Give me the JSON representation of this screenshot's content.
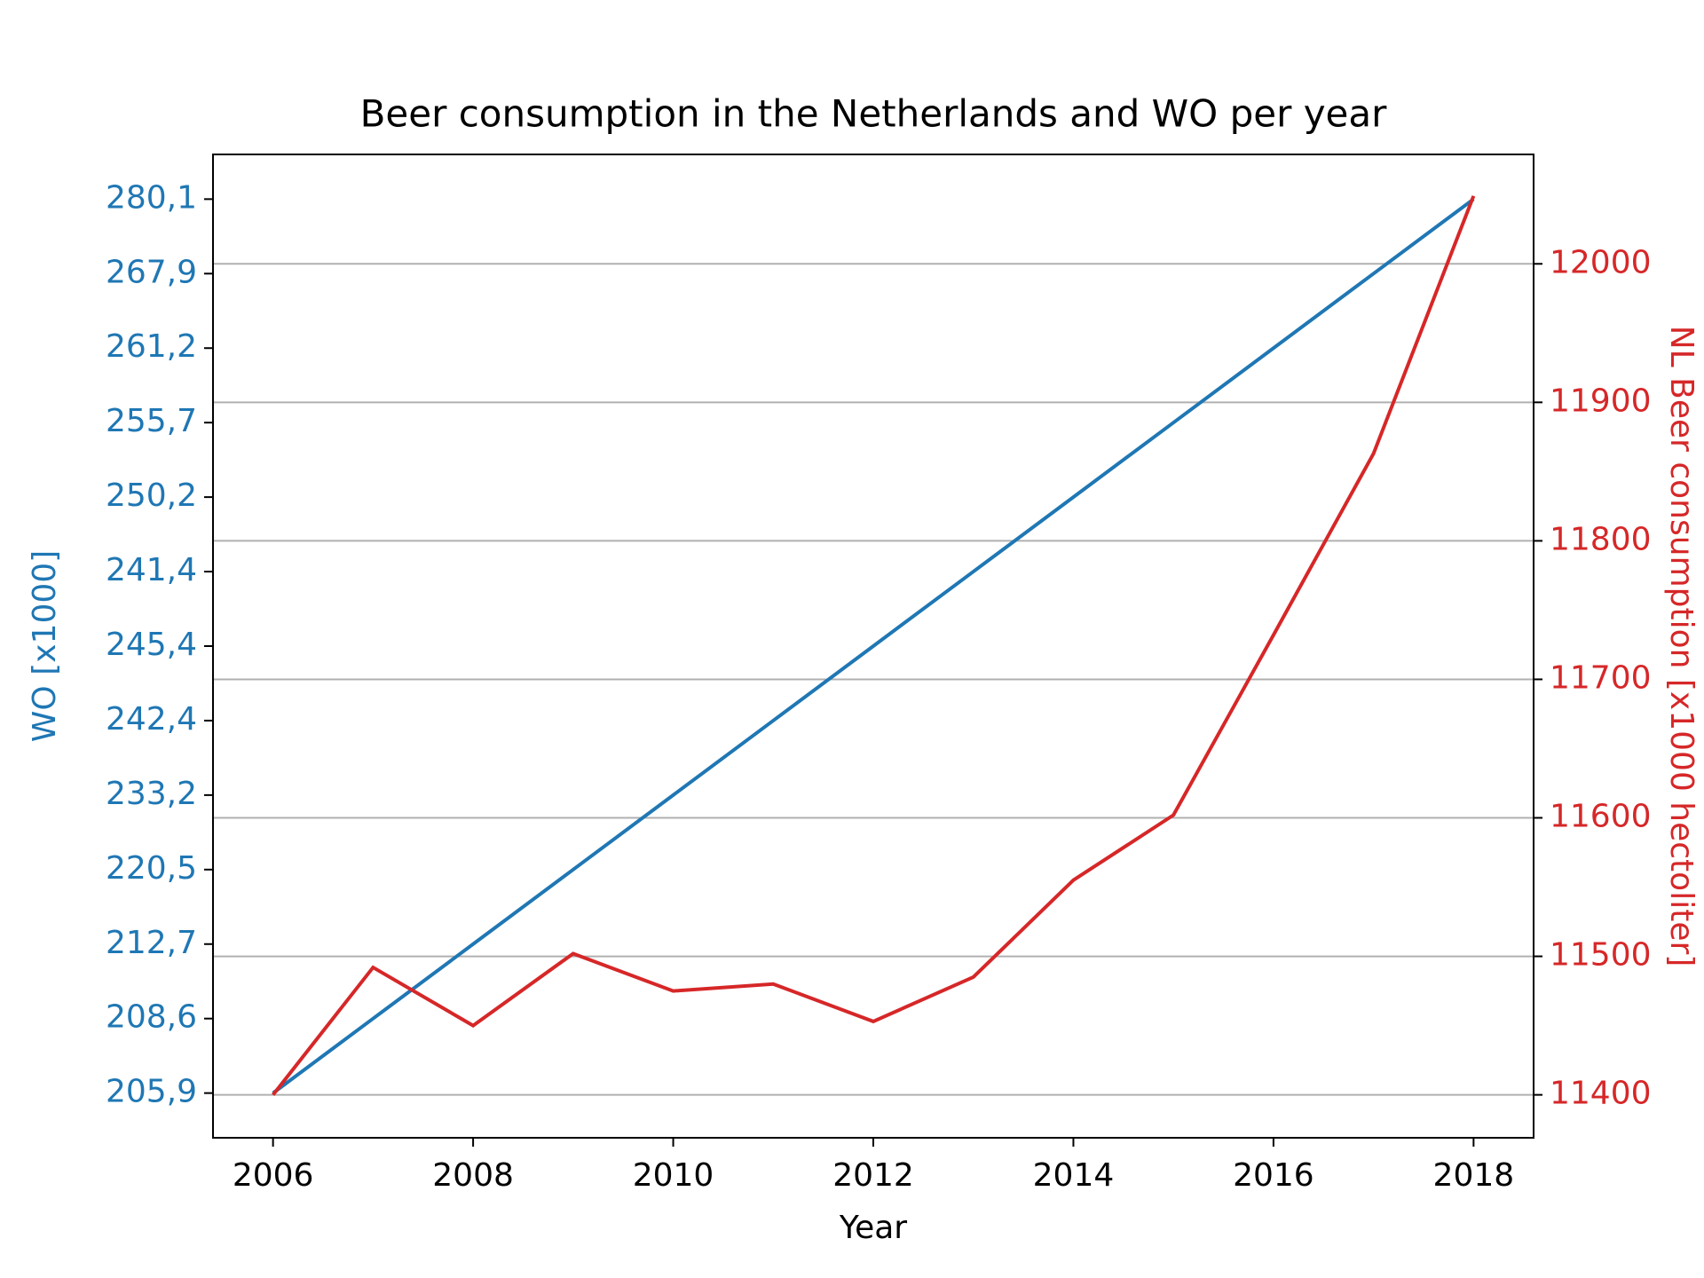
{
  "chart_data": {
    "type": "line",
    "title": "Beer consumption in the Netherlands and WO per year",
    "xlabel": "Year",
    "ylabel": "WO [x1000]",
    "y2label": "NL Beer consumption [x1000 hectoliter]",
    "x": [
      2006,
      2007,
      2008,
      2009,
      2010,
      2011,
      2012,
      2013,
      2014,
      2015,
      2016,
      2017,
      2018
    ],
    "xlim": [
      2005.4,
      2018.6
    ],
    "xticks": [
      2006,
      2008,
      2010,
      2012,
      2014,
      2016,
      2018
    ],
    "y_categories": [
      "205,9",
      "208,6",
      "212,7",
      "220,5",
      "233,2",
      "242,4",
      "245,4",
      "241,4",
      "250,2",
      "255,7",
      "261,2",
      "267,9",
      "280,1"
    ],
    "y2lim": [
      11369,
      12079
    ],
    "y2ticks": [
      11400,
      11500,
      11600,
      11700,
      11800,
      11900,
      12000
    ],
    "grid": true,
    "series": [
      {
        "color": "#1f77b4",
        "axis": "y",
        "values": [
          205.9,
          208.6,
          212.7,
          220.5,
          233.2,
          242.4,
          245.4,
          241.4,
          250.2,
          255.7,
          261.2,
          267.9,
          280.1
        ]
      },
      {
        "color": "#d62728",
        "axis": "y2",
        "values": [
          11400,
          11492,
          11450,
          11502,
          11475,
          11480,
          11453,
          11485,
          11555,
          11602,
          11732,
          11863,
          12049
        ]
      }
    ]
  }
}
